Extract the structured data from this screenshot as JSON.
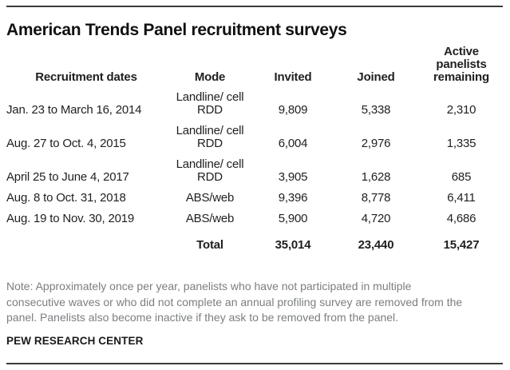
{
  "page": {
    "title": "American Trends Panel recruitment surveys",
    "note_lines": [
      "Note: Approximately once per year, panelists who have not participated in multiple",
      "consecutive waves or who did not complete an annual profiling survey are removed from the",
      "panel. Panelists also become inactive if they ask to be removed from the panel."
    ],
    "source": "PEW RESEARCH CENTER"
  },
  "colors": {
    "rule": "#3b3b3d",
    "title_text": "#111111",
    "table_text": "#1f1f1f",
    "note_text": "#7b7e81"
  },
  "table": {
    "columns": [
      "Recruitment dates",
      "Mode",
      "Invited",
      "Joined",
      "Active panelists remaining"
    ],
    "rows": [
      {
        "dates": "Jan. 23 to March 16, 2014",
        "mode": "Landline/ cell RDD",
        "invited": "9,809",
        "joined": "5,338",
        "remaining": "2,310"
      },
      {
        "dates": "Aug. 27 to Oct. 4, 2015",
        "mode": "Landline/ cell RDD",
        "invited": "6,004",
        "joined": "2,976",
        "remaining": "1,335"
      },
      {
        "dates": "April 25 to June 4, 2017",
        "mode": "Landline/ cell RDD",
        "invited": "3,905",
        "joined": "1,628",
        "remaining": "685"
      },
      {
        "dates": "Aug. 8 to Oct. 31, 2018",
        "mode": "ABS/web",
        "invited": "9,396",
        "joined": "8,778",
        "remaining": "6,411"
      },
      {
        "dates": "Aug. 19 to Nov. 30, 2019",
        "mode": "ABS/web",
        "invited": "5,900",
        "joined": "4,720",
        "remaining": "4,686"
      }
    ],
    "total_row": {
      "label": "Total",
      "invited": "35,014",
      "joined": "23,440",
      "remaining": "15,427"
    }
  },
  "chart_data": {
    "type": "table",
    "title": "American Trends Panel recruitment surveys",
    "columns": [
      "Recruitment dates",
      "Mode",
      "Invited",
      "Joined",
      "Active panelists remaining"
    ],
    "rows": [
      [
        "Jan. 23 to March 16, 2014",
        "Landline/ cell RDD",
        9809,
        5338,
        2310
      ],
      [
        "Aug. 27 to Oct. 4, 2015",
        "Landline/ cell RDD",
        6004,
        2976,
        1335
      ],
      [
        "April 25 to June 4, 2017",
        "Landline/ cell RDD",
        3905,
        1628,
        685
      ],
      [
        "Aug. 8 to Oct. 31, 2018",
        "ABS/web",
        9396,
        8778,
        6411
      ],
      [
        "Aug. 19 to Nov. 30, 2019",
        "ABS/web",
        5900,
        4720,
        4686
      ]
    ],
    "total": [
      "",
      "Total",
      35014,
      23440,
      15427
    ]
  }
}
